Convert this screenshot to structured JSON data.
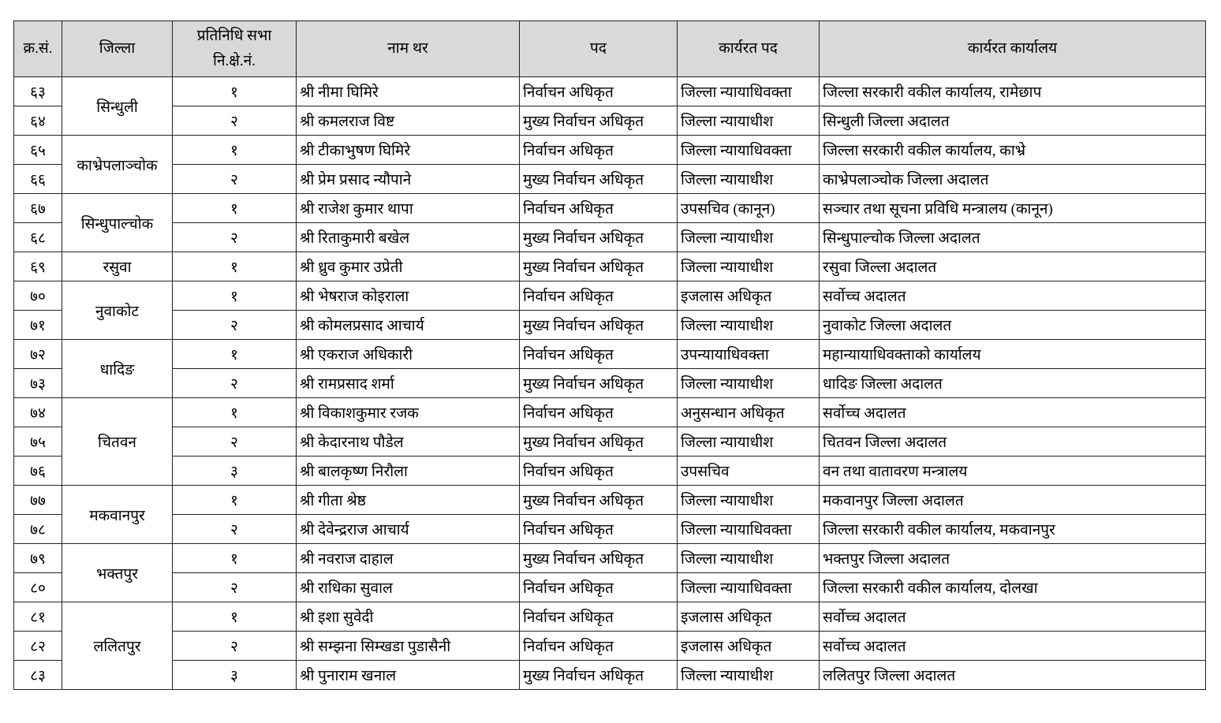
{
  "headers": {
    "sn": "क्र.सं.",
    "district": "जिल्ला",
    "constituency_line1": "प्रतिनिधि सभा",
    "constituency_line2": "नि.क्षे.नं.",
    "name": "नाम थर",
    "position": "पद",
    "current_position": "कार्यरत पद",
    "current_office": "कार्यरत कार्यालय"
  },
  "groups": [
    {
      "district": "सिन्धुली",
      "rows": [
        {
          "sn": "६३",
          "const": "१",
          "name": "श्री नीमा घिमिरे",
          "position": "निर्वाचन अधिकृत",
          "current_position": "जिल्ला न्यायाधिवक्ता",
          "office": "जिल्ला सरकारी वकील कार्यालय, रामेछाप"
        },
        {
          "sn": "६४",
          "const": "२",
          "name": "श्री कमलराज विष्ट",
          "position": "मुख्य निर्वाचन अधिकृत",
          "current_position": "जिल्ला न्यायाधीश",
          "office": "सिन्धुली जिल्ला अदालत"
        }
      ]
    },
    {
      "district": "काभ्रेपलाञ्चोक",
      "rows": [
        {
          "sn": "६५",
          "const": "१",
          "name": "श्री टीकाभुषण घिमिरे",
          "position": "निर्वाचन अधिकृत",
          "current_position": "जिल्ला न्यायाधिवक्ता",
          "office": "जिल्ला सरकारी वकील कार्यालय, काभ्रे"
        },
        {
          "sn": "६६",
          "const": "२",
          "name": "श्री प्रेम प्रसाद न्यौपाने",
          "position": "मुख्य निर्वाचन अधिकृत",
          "current_position": "जिल्ला न्यायाधीश",
          "office": "काभ्रेपलाञ्चोक जिल्ला अदालत"
        }
      ]
    },
    {
      "district": "सिन्धुपाल्चोक",
      "rows": [
        {
          "sn": "६७",
          "const": "१",
          "name": "श्री राजेश कुमार थापा",
          "position": "निर्वाचन अधिकृत",
          "current_position": "उपसचिव (कानून)",
          "office": "सञ्चार तथा सूचना प्रविधि मन्त्रालय (कानून)"
        },
        {
          "sn": "६८",
          "const": "२",
          "name": "श्री रिताकुमारी बखेल",
          "position": "मुख्य निर्वाचन अधिकृत",
          "current_position": "जिल्ला न्यायाधीश",
          "office": "सिन्धुपाल्चोक जिल्ला अदालत"
        }
      ]
    },
    {
      "district": "रसुवा",
      "rows": [
        {
          "sn": "६९",
          "const": "१",
          "name": "श्री ध्रुव कुमार उप्रेती",
          "position": "मुख्य निर्वाचन अधिकृत",
          "current_position": "जिल्ला न्यायाधीश",
          "office": "रसुवा जिल्ला अदालत"
        }
      ]
    },
    {
      "district": "नुवाकोट",
      "rows": [
        {
          "sn": "७०",
          "const": "१",
          "name": "श्री भेषराज कोइराला",
          "position": "निर्वाचन अधिकृत",
          "current_position": "इजलास अधिकृत",
          "office": "सर्वोच्च अदालत"
        },
        {
          "sn": "७१",
          "const": "२",
          "name": "श्री कोमलप्रसाद आचार्य",
          "position": "मुख्य निर्वाचन अधिकृत",
          "current_position": "जिल्ला न्यायाधीश",
          "office": "नुवाकोट जिल्ला अदालत"
        }
      ]
    },
    {
      "district": "धादिङ",
      "rows": [
        {
          "sn": "७२",
          "const": "१",
          "name": "श्री एकराज अधिकारी",
          "position": "निर्वाचन अधिकृत",
          "current_position": "उपन्यायाधिवक्ता",
          "office": "महान्यायाधिवक्ताको कार्यालय"
        },
        {
          "sn": "७३",
          "const": "२",
          "name": "श्री रामप्रसाद शर्मा",
          "position": "मुख्य निर्वाचन अधिकृत",
          "current_position": "जिल्ला न्यायाधीश",
          "office": "धादिङ जिल्ला अदालत"
        }
      ]
    },
    {
      "district": "चितवन",
      "rows": [
        {
          "sn": "७४",
          "const": "१",
          "name": "श्री विकाशकुमार रजक",
          "position": "निर्वाचन अधिकृत",
          "current_position": "अनुसन्धान अधिकृत",
          "office": "सर्वोच्च अदालत"
        },
        {
          "sn": "७५",
          "const": "२",
          "name": "श्री केदारनाथ पौडेल",
          "position": "मुख्य निर्वाचन अधिकृत",
          "current_position": "जिल्ला न्यायाधीश",
          "office": "चितवन जिल्ला अदालत"
        },
        {
          "sn": "७६",
          "const": "३",
          "name": "श्री बालकृष्ण निरौला",
          "position": "निर्वाचन अधिकृत",
          "current_position": "उपसचिव",
          "office": "वन तथा वातावरण मन्त्रालय"
        }
      ]
    },
    {
      "district": "मकवानपुर",
      "rows": [
        {
          "sn": "७७",
          "const": "१",
          "name": "श्री गीता श्रेष्ठ",
          "position": "मुख्य निर्वाचन अधिकृत",
          "current_position": "जिल्ला न्यायाधीश",
          "office": "मकवानपुर जिल्ला अदालत"
        },
        {
          "sn": "७८",
          "const": "२",
          "name": "श्री देवेन्द्रराज आचार्य",
          "position": "निर्वाचन अधिकृत",
          "current_position": "जिल्ला न्यायाधिवक्ता",
          "office": "जिल्ला सरकारी वकील कार्यालय, मकवानपुर"
        }
      ]
    },
    {
      "district": "भक्तपुर",
      "rows": [
        {
          "sn": "७९",
          "const": "१",
          "name": "श्री नवराज दाहाल",
          "position": "मुख्य निर्वाचन अधिकृत",
          "current_position": "जिल्ला न्यायाधीश",
          "office": "भक्तपुर जिल्ला अदालत"
        },
        {
          "sn": "८०",
          "const": "२",
          "name": "श्री राधिका सुवाल",
          "position": "निर्वाचन अधिकृत",
          "current_position": "जिल्ला न्यायाधिवक्ता",
          "office": "जिल्ला सरकारी वकील कार्यालय, दोलखा"
        }
      ]
    },
    {
      "district": "ललितपुर",
      "rows": [
        {
          "sn": "८१",
          "const": "१",
          "name": "श्री इशा सुवेदी",
          "position": "निर्वाचन अधिकृत",
          "current_position": "इजलास अधिकृत",
          "office": "सर्वोच्च अदालत"
        },
        {
          "sn": "८२",
          "const": "२",
          "name": "श्री सम्झना सिम्खडा पुडासैनी",
          "position": "निर्वाचन अधिकृत",
          "current_position": "इजलास अधिकृत",
          "office": "सर्वोच्च अदालत"
        },
        {
          "sn": "८३",
          "const": "३",
          "name": "श्री पुनाराम खनाल",
          "position": "मुख्य निर्वाचन अधिकृत",
          "current_position": "जिल्ला न्यायाधीश",
          "office": "ललितपुर जिल्ला अदालत"
        }
      ]
    }
  ]
}
